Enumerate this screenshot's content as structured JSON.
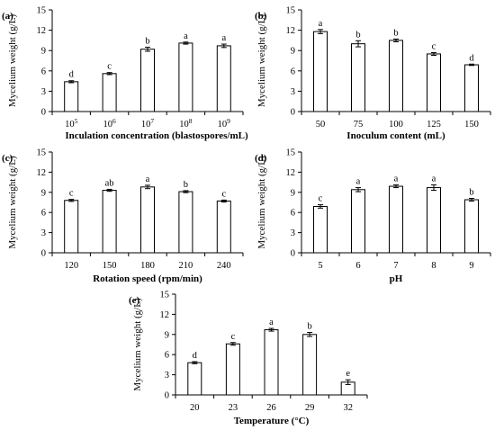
{
  "chart_data": [
    {
      "type": "bar",
      "panel_label": "(a)",
      "xlabel": "Inculation concentration (blastospores/mL)",
      "ylabel": "Mycelium weight (g/L)",
      "ylim": [
        0,
        15
      ],
      "yticks": [
        "0",
        "3",
        "6",
        "9",
        "12",
        "15"
      ],
      "categories": [
        {
          "base": "10",
          "exp": "5"
        },
        {
          "base": "10",
          "exp": "6"
        },
        {
          "base": "10",
          "exp": "7"
        },
        {
          "base": "10",
          "exp": "8"
        },
        {
          "base": "10",
          "exp": "9"
        }
      ],
      "values": [
        4.4,
        5.6,
        9.2,
        10.1,
        9.7
      ],
      "errors": [
        0.15,
        0.15,
        0.3,
        0.15,
        0.25
      ],
      "significance": [
        "d",
        "c",
        "b",
        "a",
        "a"
      ],
      "grid": false
    },
    {
      "type": "bar",
      "panel_label": "(b)",
      "xlabel": "Inoculum content (mL)",
      "ylabel": "Mycelium weight (g/L)",
      "ylim": [
        0,
        15
      ],
      "yticks": [
        "0",
        "3",
        "6",
        "9",
        "12",
        "15"
      ],
      "categories": [
        "50",
        "75",
        "100",
        "125",
        "150"
      ],
      "values": [
        11.8,
        10.0,
        10.5,
        8.5,
        6.9
      ],
      "errors": [
        0.3,
        0.45,
        0.2,
        0.2,
        0.1
      ],
      "significance": [
        "a",
        "b",
        "b",
        "c",
        "d"
      ],
      "grid": false
    },
    {
      "type": "bar",
      "panel_label": "(c)",
      "xlabel": "Rotation speed (rpm/min)",
      "ylabel": "Mycelium weight (g/L)",
      "ylim": [
        0,
        15
      ],
      "yticks": [
        "0",
        "3",
        "6",
        "9",
        "12",
        "15"
      ],
      "categories": [
        "120",
        "150",
        "180",
        "210",
        "240"
      ],
      "values": [
        7.8,
        9.3,
        9.8,
        9.1,
        7.7
      ],
      "errors": [
        0.15,
        0.15,
        0.25,
        0.15,
        0.15
      ],
      "significance": [
        "c",
        "ab",
        "a",
        "b",
        "c"
      ],
      "grid": false
    },
    {
      "type": "bar",
      "panel_label": "(d)",
      "xlabel": "pH",
      "ylabel": "Mycelium weight (g/L)",
      "ylim": [
        0,
        15
      ],
      "yticks": [
        "0",
        "3",
        "6",
        "9",
        "12",
        "15"
      ],
      "categories": [
        "5",
        "6",
        "7",
        "8",
        "9"
      ],
      "values": [
        6.9,
        9.4,
        9.9,
        9.7,
        7.9
      ],
      "errors": [
        0.25,
        0.3,
        0.2,
        0.4,
        0.2
      ],
      "significance": [
        "c",
        "a",
        "a",
        "a",
        "b"
      ],
      "grid": false
    },
    {
      "type": "bar",
      "panel_label": "(e)",
      "xlabel": "Temperature (°C)",
      "ylabel": "Mycelium weight (g/L)",
      "ylim": [
        0,
        15
      ],
      "yticks": [
        "0",
        "3",
        "6",
        "9",
        "12",
        "15"
      ],
      "categories": [
        "20",
        "23",
        "26",
        "29",
        "32"
      ],
      "values": [
        4.8,
        7.6,
        9.7,
        9.0,
        1.9
      ],
      "errors": [
        0.15,
        0.2,
        0.2,
        0.3,
        0.35
      ],
      "significance": [
        "d",
        "c",
        "a",
        "b",
        "e"
      ],
      "grid": false
    }
  ]
}
